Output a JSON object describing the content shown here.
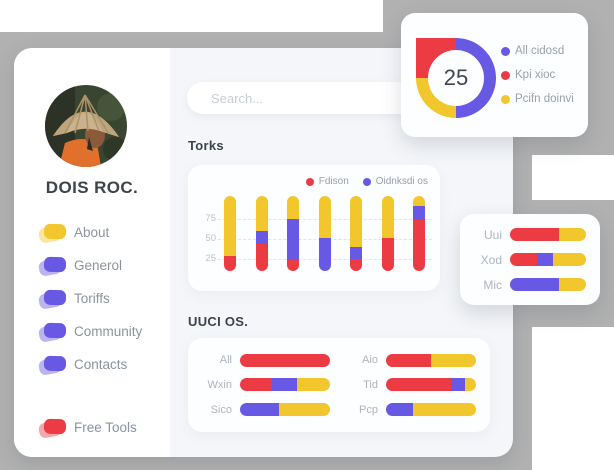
{
  "colors": {
    "red": "#ED3B44",
    "yellow": "#F1C72D",
    "purple": "#6759E3",
    "grey_backdrop": "#B1B1B1"
  },
  "profile": {
    "name": "DOIS ROC."
  },
  "sidebar": {
    "items": [
      {
        "label": "About",
        "color": "yellow"
      },
      {
        "label": "Generol",
        "color": "purple"
      },
      {
        "label": "Toriffs",
        "color": "purple"
      },
      {
        "label": "Community",
        "color": "purple"
      },
      {
        "label": "Contacts",
        "color": "purple"
      }
    ],
    "footer_item": {
      "label": "Free Tools",
      "color": "red"
    }
  },
  "search": {
    "placeholder": "Search..."
  },
  "kpi_card": {
    "value": "25",
    "donut_segments": [
      {
        "color": "purple",
        "pct": 50
      },
      {
        "color": "yellow",
        "pct": 25
      },
      {
        "color": "red",
        "pct": 25
      }
    ],
    "legend": [
      {
        "label": "All cidosd",
        "color": "purple"
      },
      {
        "label": "Kpi xioc",
        "color": "red"
      },
      {
        "label": "Pcifn doinvi",
        "color": "yellow"
      }
    ]
  },
  "torks": {
    "title": "Torks",
    "legend": [
      {
        "label": "Fdison",
        "color": "red"
      },
      {
        "label": "Oidnksdi os",
        "color": "purple"
      }
    ],
    "y_ticks": [
      {
        "label": "75",
        "y": 54
      },
      {
        "label": "50",
        "y": 74
      },
      {
        "label": "25",
        "y": 94
      }
    ],
    "bars": [
      {
        "segments": [
          [
            "red",
            15
          ],
          [
            "yellow",
            60
          ]
        ]
      },
      {
        "segments": [
          [
            "red",
            27
          ],
          [
            "purple",
            13
          ],
          [
            "yellow",
            35
          ]
        ]
      },
      {
        "segments": [
          [
            "red",
            11
          ],
          [
            "purple",
            41
          ],
          [
            "yellow",
            23
          ]
        ]
      },
      {
        "segments": [
          [
            "purple",
            33
          ],
          [
            "yellow",
            42
          ]
        ]
      },
      {
        "segments": [
          [
            "red",
            12
          ],
          [
            "purple",
            12
          ],
          [
            "yellow",
            51
          ]
        ]
      },
      {
        "segments": [
          [
            "red",
            33
          ],
          [
            "yellow",
            42
          ]
        ]
      },
      {
        "segments": [
          [
            "red",
            51
          ],
          [
            "purple",
            14
          ],
          [
            "yellow",
            10
          ]
        ]
      }
    ]
  },
  "uuci": {
    "title": "UUCI OS.",
    "left_rows": [
      {
        "label": "All",
        "segments": [
          [
            "red",
            100
          ]
        ]
      },
      {
        "label": "Wxin",
        "segments": [
          [
            "red",
            36
          ],
          [
            "purple",
            27
          ],
          [
            "yellow",
            37
          ]
        ]
      },
      {
        "label": "Sico",
        "segments": [
          [
            "purple",
            43
          ],
          [
            "yellow",
            57
          ]
        ]
      }
    ],
    "right_rows": [
      {
        "label": "Aio",
        "segments": [
          [
            "red",
            50
          ],
          [
            "yellow",
            50
          ]
        ]
      },
      {
        "label": "Tid",
        "segments": [
          [
            "red",
            72
          ],
          [
            "purple",
            16
          ],
          [
            "yellow",
            12
          ]
        ]
      },
      {
        "label": "Pcp",
        "segments": [
          [
            "purple",
            30
          ],
          [
            "yellow",
            70
          ]
        ]
      }
    ]
  },
  "side_panel": {
    "rows": [
      {
        "label": "Uui",
        "segments": [
          [
            "red",
            65
          ],
          [
            "yellow",
            35
          ]
        ]
      },
      {
        "label": "Xod",
        "segments": [
          [
            "red",
            35
          ],
          [
            "purple",
            22
          ],
          [
            "yellow",
            43
          ]
        ]
      },
      {
        "label": "Mic",
        "segments": [
          [
            "purple",
            65
          ],
          [
            "yellow",
            35
          ]
        ]
      }
    ]
  }
}
